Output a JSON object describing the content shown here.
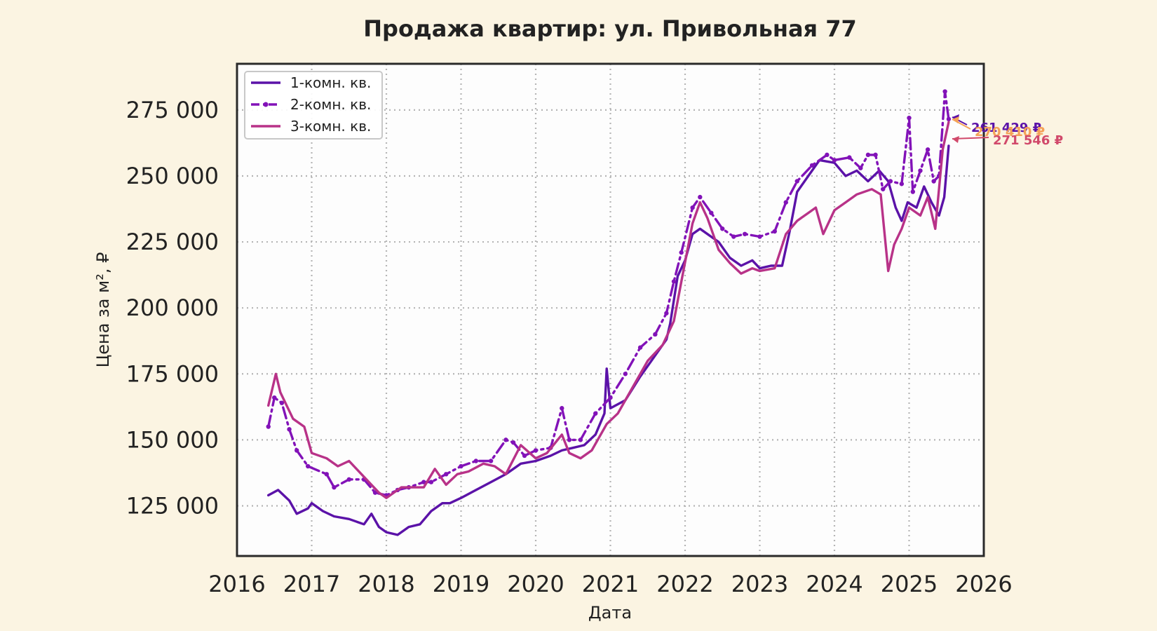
{
  "chart_data": {
    "type": "line",
    "title": "Продажа квартир: ул. Привольная 77",
    "xlabel": "Дата",
    "ylabel": "Цена за м², ₽",
    "xlim": [
      2016.0,
      2026.0
    ],
    "ylim": [
      106000,
      292500
    ],
    "x_ticks": [
      "2016",
      "2017",
      "2018",
      "2019",
      "2020",
      "2021",
      "2022",
      "2023",
      "2024",
      "2025",
      "2026"
    ],
    "y_ticks": [
      "125 000",
      "150 000",
      "175 000",
      "200 000",
      "225 000",
      "250 000",
      "275 000"
    ],
    "y_tick_values": [
      125000,
      150000,
      175000,
      200000,
      225000,
      250000,
      275000
    ],
    "grid": true,
    "legend_position": "top-left",
    "series": [
      {
        "name": "1-комн. кв.",
        "color": "#5b12a8",
        "style": "solid",
        "points": [
          [
            2016.42,
            129000
          ],
          [
            2016.55,
            131000
          ],
          [
            2016.7,
            127000
          ],
          [
            2016.8,
            122000
          ],
          [
            2016.95,
            124000
          ],
          [
            2017.0,
            126000
          ],
          [
            2017.15,
            123000
          ],
          [
            2017.3,
            121000
          ],
          [
            2017.5,
            120000
          ],
          [
            2017.7,
            118000
          ],
          [
            2017.8,
            122000
          ],
          [
            2017.9,
            117000
          ],
          [
            2018.0,
            115000
          ],
          [
            2018.15,
            114000
          ],
          [
            2018.3,
            117000
          ],
          [
            2018.45,
            118000
          ],
          [
            2018.6,
            123000
          ],
          [
            2018.75,
            126000
          ],
          [
            2018.85,
            126000
          ],
          [
            2019.0,
            128000
          ],
          [
            2019.2,
            131000
          ],
          [
            2019.4,
            134000
          ],
          [
            2019.6,
            137000
          ],
          [
            2019.8,
            141000
          ],
          [
            2020.0,
            142000
          ],
          [
            2020.2,
            144000
          ],
          [
            2020.35,
            146000
          ],
          [
            2020.5,
            147000
          ],
          [
            2020.65,
            148000
          ],
          [
            2020.8,
            152000
          ],
          [
            2020.92,
            160000
          ],
          [
            2020.95,
            177000
          ],
          [
            2021.0,
            162000
          ],
          [
            2021.2,
            165000
          ],
          [
            2021.4,
            174000
          ],
          [
            2021.6,
            182000
          ],
          [
            2021.75,
            188000
          ],
          [
            2021.8,
            194000
          ],
          [
            2021.9,
            212000
          ],
          [
            2022.0,
            218000
          ],
          [
            2022.1,
            228000
          ],
          [
            2022.2,
            230000
          ],
          [
            2022.3,
            228000
          ],
          [
            2022.45,
            225000
          ],
          [
            2022.6,
            219000
          ],
          [
            2022.75,
            216000
          ],
          [
            2022.9,
            218000
          ],
          [
            2023.0,
            215000
          ],
          [
            2023.15,
            216000
          ],
          [
            2023.3,
            216000
          ],
          [
            2023.4,
            229000
          ],
          [
            2023.5,
            244000
          ],
          [
            2023.65,
            250000
          ],
          [
            2023.8,
            256000
          ],
          [
            2024.0,
            255000
          ],
          [
            2024.15,
            250000
          ],
          [
            2024.3,
            252000
          ],
          [
            2024.45,
            248000
          ],
          [
            2024.6,
            252000
          ],
          [
            2024.72,
            248000
          ],
          [
            2024.82,
            238000
          ],
          [
            2024.9,
            233000
          ],
          [
            2024.98,
            240000
          ],
          [
            2025.1,
            238000
          ],
          [
            2025.2,
            246000
          ],
          [
            2025.3,
            240000
          ],
          [
            2025.4,
            235000
          ],
          [
            2025.47,
            242000
          ],
          [
            2025.53,
            261429
          ]
        ]
      },
      {
        "name": "2-комн. кв.",
        "color": "#8212b8",
        "style": "dashdot",
        "points": [
          [
            2016.42,
            155000
          ],
          [
            2016.5,
            166000
          ],
          [
            2016.6,
            164000
          ],
          [
            2016.7,
            154000
          ],
          [
            2016.8,
            146000
          ],
          [
            2016.95,
            140000
          ],
          [
            2017.2,
            137000
          ],
          [
            2017.3,
            132000
          ],
          [
            2017.5,
            135000
          ],
          [
            2017.7,
            135000
          ],
          [
            2017.85,
            130000
          ],
          [
            2018.0,
            129000
          ],
          [
            2018.15,
            131000
          ],
          [
            2018.3,
            132000
          ],
          [
            2018.5,
            134000
          ],
          [
            2018.6,
            134000
          ],
          [
            2018.8,
            137000
          ],
          [
            2019.0,
            140000
          ],
          [
            2019.2,
            142000
          ],
          [
            2019.4,
            142000
          ],
          [
            2019.6,
            150000
          ],
          [
            2019.7,
            149000
          ],
          [
            2019.85,
            144000
          ],
          [
            2020.0,
            146000
          ],
          [
            2020.2,
            147000
          ],
          [
            2020.35,
            162000
          ],
          [
            2020.45,
            150000
          ],
          [
            2020.6,
            150000
          ],
          [
            2020.8,
            160000
          ],
          [
            2021.0,
            166000
          ],
          [
            2021.2,
            175000
          ],
          [
            2021.4,
            185000
          ],
          [
            2021.6,
            190000
          ],
          [
            2021.75,
            198000
          ],
          [
            2021.85,
            210000
          ],
          [
            2021.95,
            221000
          ],
          [
            2022.1,
            238000
          ],
          [
            2022.2,
            242000
          ],
          [
            2022.35,
            236000
          ],
          [
            2022.5,
            230000
          ],
          [
            2022.65,
            227000
          ],
          [
            2022.8,
            228000
          ],
          [
            2023.0,
            227000
          ],
          [
            2023.2,
            229000
          ],
          [
            2023.35,
            240000
          ],
          [
            2023.5,
            248000
          ],
          [
            2023.7,
            254000
          ],
          [
            2023.9,
            258000
          ],
          [
            2024.0,
            256000
          ],
          [
            2024.2,
            257000
          ],
          [
            2024.35,
            253000
          ],
          [
            2024.45,
            258000
          ],
          [
            2024.55,
            258000
          ],
          [
            2024.65,
            245000
          ],
          [
            2024.75,
            248000
          ],
          [
            2024.9,
            247000
          ],
          [
            2025.0,
            272000
          ],
          [
            2025.05,
            244000
          ],
          [
            2025.15,
            252000
          ],
          [
            2025.25,
            260000
          ],
          [
            2025.33,
            248000
          ],
          [
            2025.4,
            250000
          ],
          [
            2025.48,
            282000
          ],
          [
            2025.53,
            271546
          ]
        ]
      },
      {
        "name": "3-комн. кв.",
        "color": "#b83288",
        "style": "solid",
        "points": [
          [
            2016.42,
            163000
          ],
          [
            2016.52,
            175000
          ],
          [
            2016.58,
            168000
          ],
          [
            2016.75,
            158000
          ],
          [
            2016.9,
            155000
          ],
          [
            2017.0,
            145000
          ],
          [
            2017.2,
            143000
          ],
          [
            2017.35,
            140000
          ],
          [
            2017.5,
            142000
          ],
          [
            2017.6,
            139000
          ],
          [
            2017.8,
            133000
          ],
          [
            2017.9,
            130000
          ],
          [
            2018.0,
            128000
          ],
          [
            2018.2,
            132000
          ],
          [
            2018.5,
            132000
          ],
          [
            2018.65,
            139000
          ],
          [
            2018.8,
            133000
          ],
          [
            2018.95,
            137000
          ],
          [
            2019.1,
            138000
          ],
          [
            2019.3,
            141000
          ],
          [
            2019.45,
            140000
          ],
          [
            2019.6,
            137000
          ],
          [
            2019.8,
            148000
          ],
          [
            2020.0,
            143000
          ],
          [
            2020.15,
            145000
          ],
          [
            2020.35,
            152000
          ],
          [
            2020.45,
            145000
          ],
          [
            2020.6,
            143000
          ],
          [
            2020.75,
            146000
          ],
          [
            2020.95,
            156000
          ],
          [
            2021.1,
            160000
          ],
          [
            2021.3,
            170000
          ],
          [
            2021.5,
            180000
          ],
          [
            2021.7,
            186000
          ],
          [
            2021.85,
            195000
          ],
          [
            2021.95,
            210000
          ],
          [
            2022.1,
            232000
          ],
          [
            2022.2,
            240000
          ],
          [
            2022.3,
            234000
          ],
          [
            2022.45,
            222000
          ],
          [
            2022.6,
            217000
          ],
          [
            2022.75,
            213000
          ],
          [
            2022.9,
            215000
          ],
          [
            2023.0,
            214000
          ],
          [
            2023.2,
            215000
          ],
          [
            2023.35,
            228000
          ],
          [
            2023.5,
            233000
          ],
          [
            2023.65,
            236000
          ],
          [
            2023.75,
            238000
          ],
          [
            2023.85,
            228000
          ],
          [
            2024.0,
            237000
          ],
          [
            2024.15,
            240000
          ],
          [
            2024.3,
            243000
          ],
          [
            2024.5,
            245000
          ],
          [
            2024.62,
            243000
          ],
          [
            2024.72,
            214000
          ],
          [
            2024.8,
            224000
          ],
          [
            2024.9,
            230000
          ],
          [
            2025.0,
            238000
          ],
          [
            2025.15,
            235000
          ],
          [
            2025.25,
            242000
          ],
          [
            2025.35,
            230000
          ],
          [
            2025.45,
            260000
          ],
          [
            2025.53,
            270410
          ]
        ]
      }
    ],
    "annotations": [
      {
        "text": "261 429 ₽",
        "color": "#5b12a8",
        "value": 261429
      },
      {
        "text": "270 410 ₽",
        "color": "#f4a259",
        "value": 270410
      },
      {
        "text": "271 546 ₽",
        "color": "#d1496b",
        "value": 271546
      }
    ]
  }
}
